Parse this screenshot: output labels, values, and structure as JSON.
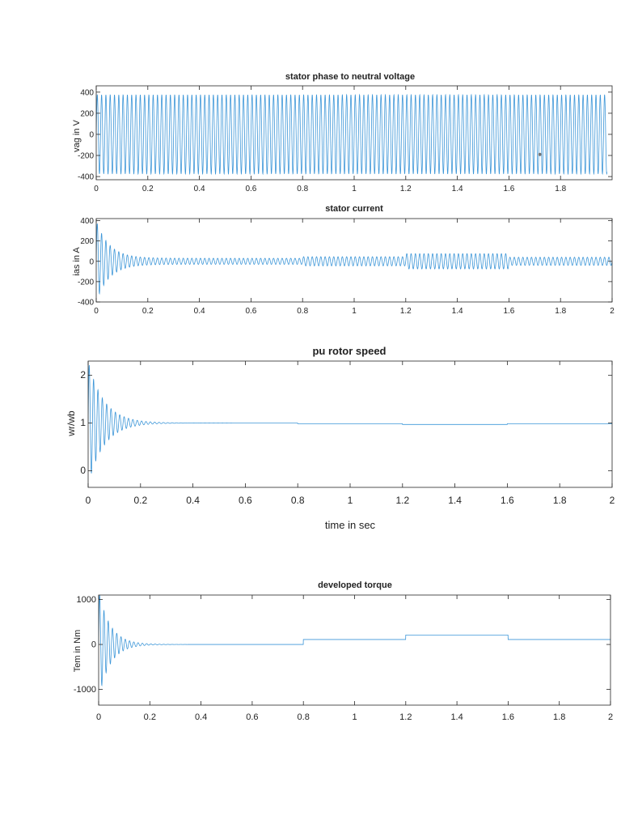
{
  "chart_data": [
    {
      "type": "line",
      "title": "stator phase to neutral voltage",
      "xlabel": "",
      "ylabel": "vag in V",
      "xlim": [
        0,
        2
      ],
      "ylim": [
        -430,
        460
      ],
      "xticks": [
        "0",
        "0.2",
        "0.4",
        "0.6",
        "0.8",
        "1",
        "1.2",
        "1.4",
        "1.6",
        "1.8"
      ],
      "yticks": [
        "400",
        "200",
        "0",
        "-200",
        "-400"
      ],
      "grid": false,
      "series": [
        {
          "signal": "sinusoid",
          "amplitude": 375,
          "frequency_hz": 60,
          "x_end": 1.98
        }
      ],
      "marker_point": {
        "x": 1.72,
        "y": -190
      },
      "line_color": "#3c96d8"
    },
    {
      "type": "line",
      "title": "stator current",
      "xlabel": "",
      "ylabel": "ias in A",
      "xlim": [
        0,
        2
      ],
      "ylim": [
        -400,
        420
      ],
      "xticks": [
        "0",
        "0.2",
        "0.4",
        "0.6",
        "0.8",
        "1",
        "1.2",
        "1.4",
        "1.6",
        "1.8",
        "2"
      ],
      "yticks": [
        "400",
        "200",
        "0",
        "-200",
        "-400"
      ],
      "grid": false,
      "series": [
        {
          "signal": "oscillation",
          "frequency_hz": 60,
          "startup_peak": 400,
          "startup_decay_s": 0.05,
          "amplitude_by_interval": [
            {
              "from": 0.0,
              "to": 0.8,
              "amplitude": 30
            },
            {
              "from": 0.8,
              "to": 1.2,
              "amplitude": 45
            },
            {
              "from": 1.2,
              "to": 1.6,
              "amplitude": 75
            },
            {
              "from": 1.6,
              "to": 2.0,
              "amplitude": 40
            }
          ]
        }
      ],
      "line_color": "#3c96d8"
    },
    {
      "type": "line",
      "title": "pu rotor speed",
      "xlabel": "time in sec",
      "ylabel": "wr/wb",
      "xlim": [
        0,
        2
      ],
      "ylim": [
        -0.35,
        2.3
      ],
      "xticks": [
        "0",
        "0.2",
        "0.4",
        "0.6",
        "0.8",
        "1",
        "1.2",
        "1.4",
        "1.6",
        "1.8",
        "2"
      ],
      "yticks": [
        "2",
        "1",
        "0"
      ],
      "grid": false,
      "series": [
        {
          "signal": "damped_oscillation",
          "final_value": 1.0,
          "startup_peak": 1.3,
          "startup_decay_s": 0.06,
          "steady_by_interval": [
            {
              "from": 0.0,
              "to": 0.8,
              "value": 1.0
            },
            {
              "from": 0.8,
              "to": 1.2,
              "value": 0.985
            },
            {
              "from": 1.2,
              "to": 1.6,
              "value": 0.97
            },
            {
              "from": 1.6,
              "to": 2.0,
              "value": 0.985
            }
          ]
        }
      ],
      "line_color": "#3c96d8"
    },
    {
      "type": "line",
      "title": "developed torque",
      "xlabel": "",
      "ylabel": "Tem in Nm",
      "xlim": [
        0,
        2
      ],
      "ylim": [
        -1350,
        1100
      ],
      "xticks": [
        "0",
        "0.2",
        "0.4",
        "0.6",
        "0.8",
        "1",
        "1.2",
        "1.4",
        "1.6",
        "1.8",
        "2"
      ],
      "yticks": [
        "1000",
        "0",
        "-1000"
      ],
      "grid": false,
      "series": [
        {
          "signal": "damped_oscillation",
          "startup_peak": 1200,
          "startup_decay_s": 0.045,
          "steady_by_interval": [
            {
              "from": 0.0,
              "to": 0.8,
              "value": 0
            },
            {
              "from": 0.8,
              "to": 1.2,
              "value": 110
            },
            {
              "from": 1.2,
              "to": 1.6,
              "value": 210
            },
            {
              "from": 1.6,
              "to": 2.0,
              "value": 110
            }
          ]
        }
      ],
      "line_color": "#3c96d8"
    }
  ]
}
